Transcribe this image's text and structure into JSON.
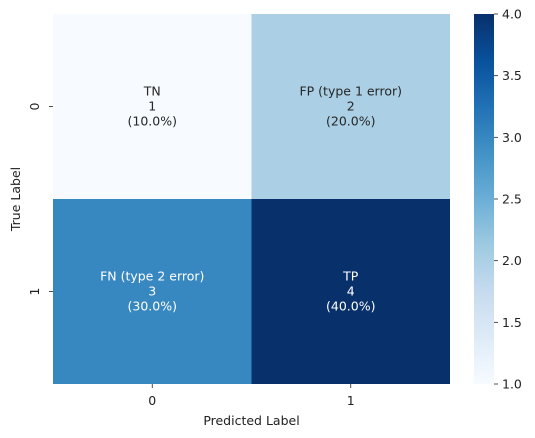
{
  "chart_data": {
    "type": "heatmap",
    "title": "",
    "xlabel": "Predicted Label",
    "ylabel": "True Label",
    "x_categories": [
      "0",
      "1"
    ],
    "y_categories": [
      "0",
      "1"
    ],
    "values": [
      [
        1,
        2
      ],
      [
        3,
        4
      ]
    ],
    "cells": [
      [
        {
          "lines": [
            "TN",
            "1",
            "(10.0%)"
          ],
          "text_color": "#262626"
        },
        {
          "lines": [
            "FP (type 1 error)",
            "2",
            "(20.0%)"
          ],
          "text_color": "#262626"
        }
      ],
      [
        {
          "lines": [
            "FN (type 2 error)",
            "3",
            "(30.0%)"
          ],
          "text_color": "#ffffff"
        },
        {
          "lines": [
            "TP",
            "4",
            "(40.0%)"
          ],
          "text_color": "#ffffff"
        }
      ]
    ],
    "colormap": "Blues",
    "colorbar": {
      "range": [
        1.0,
        4.0
      ],
      "ticks": [
        "1.0",
        "1.5",
        "2.0",
        "2.5",
        "3.0",
        "3.5",
        "4.0"
      ],
      "tick_values": [
        1.0,
        1.5,
        2.0,
        2.5,
        3.0,
        3.5,
        4.0
      ]
    },
    "cell_colors": [
      [
        "#f7fbff",
        "#abcfe5"
      ],
      [
        "#3787c0",
        "#08306b"
      ]
    ]
  }
}
